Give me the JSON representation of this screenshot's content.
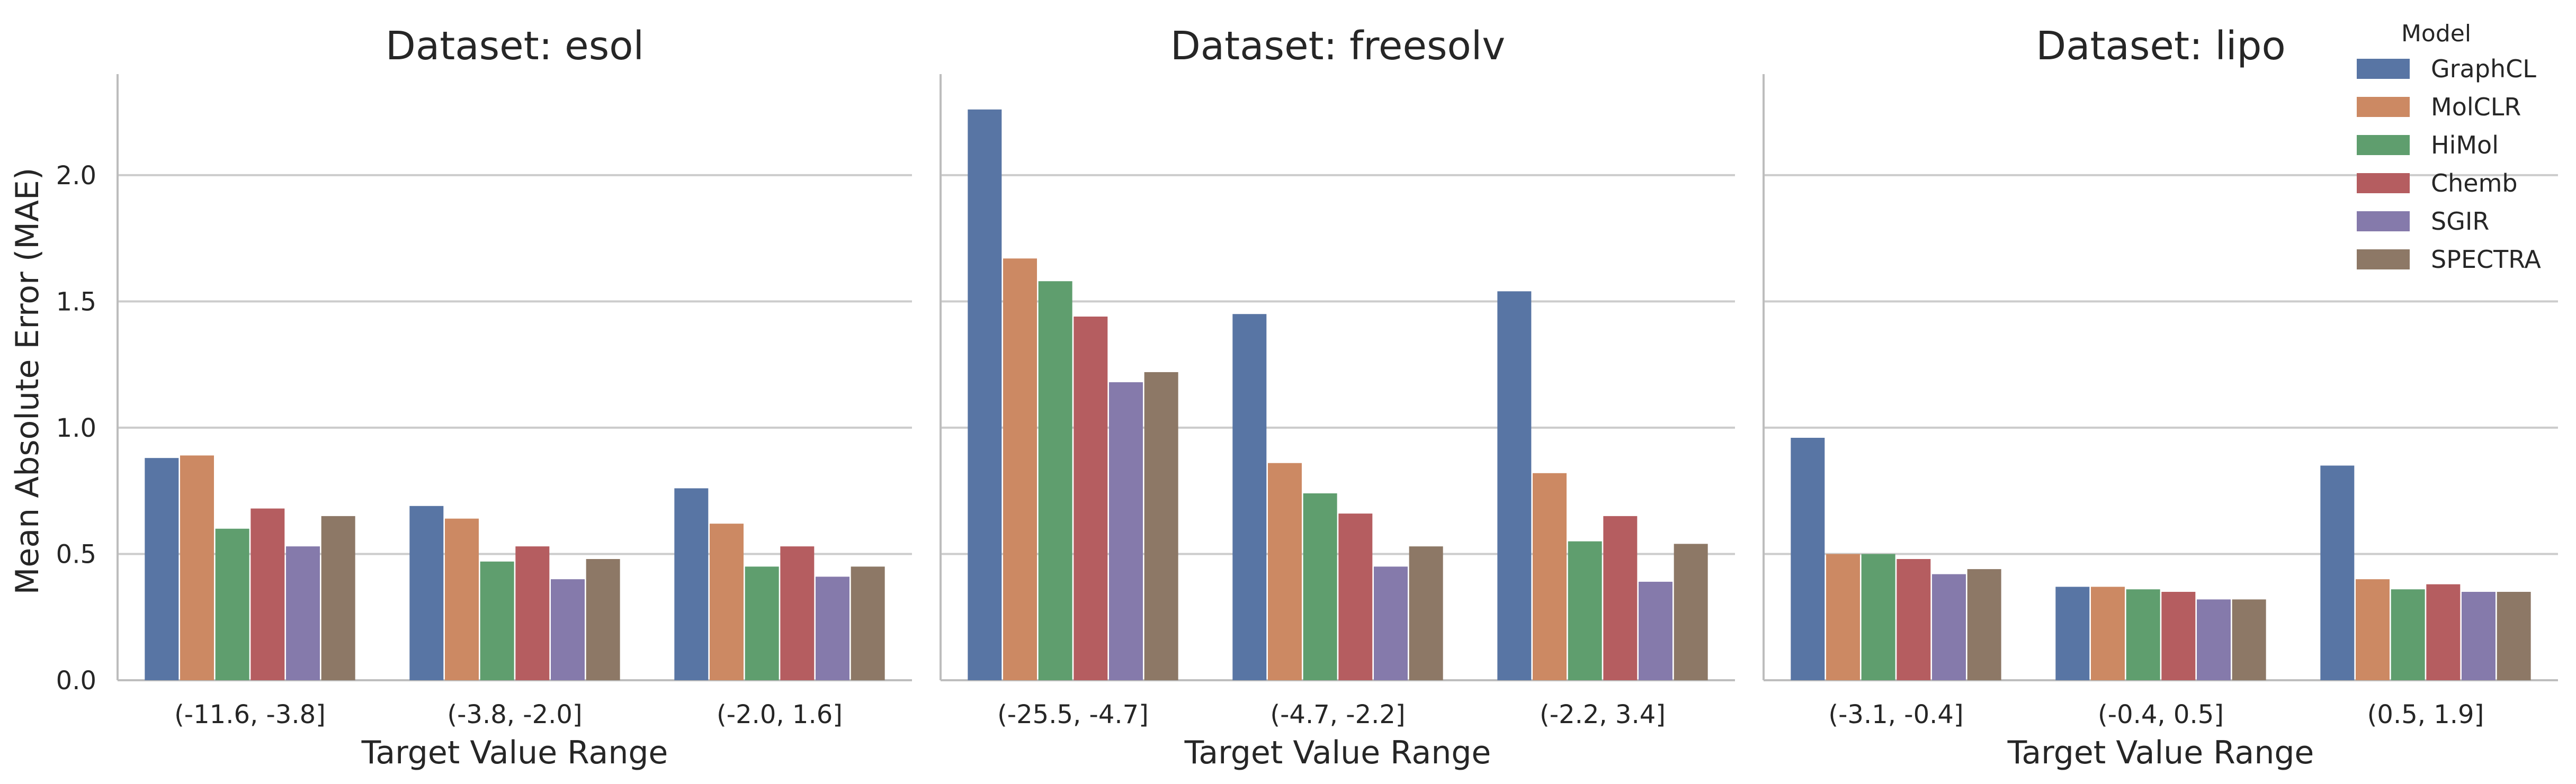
{
  "chart_data": {
    "type": "bar",
    "ylabel": "Mean Absolute Error (MAE)",
    "xlabel": "Target Value Range",
    "ylim": [
      0,
      2.4
    ],
    "yticks": [
      "0.0",
      "0.5",
      "1.0",
      "1.5",
      "2.0"
    ],
    "grid": "horizontal",
    "legend": {
      "title": "Model",
      "placement": "top-right",
      "entries": [
        {
          "name": "GraphCL",
          "color": "#5875a4"
        },
        {
          "name": "MolCLR",
          "color": "#cc8963"
        },
        {
          "name": "HiMol",
          "color": "#5f9e6e"
        },
        {
          "name": "Chemb",
          "color": "#b55d60"
        },
        {
          "name": "SGIR",
          "color": "#857aab"
        },
        {
          "name": "SPECTRA",
          "color": "#8d7866"
        }
      ]
    },
    "panels": [
      {
        "title": "Dataset: esol",
        "categories": [
          "(-11.6, -3.8]",
          "(-3.8, -2.0]",
          "(-2.0, 1.6]"
        ],
        "series": [
          {
            "name": "GraphCL",
            "values": [
              0.88,
              0.69,
              0.76
            ]
          },
          {
            "name": "MolCLR",
            "values": [
              0.89,
              0.64,
              0.62
            ]
          },
          {
            "name": "HiMol",
            "values": [
              0.6,
              0.47,
              0.45
            ]
          },
          {
            "name": "Chemb",
            "values": [
              0.68,
              0.53,
              0.53
            ]
          },
          {
            "name": "SGIR",
            "values": [
              0.53,
              0.4,
              0.41
            ]
          },
          {
            "name": "SPECTRA",
            "values": [
              0.65,
              0.48,
              0.45
            ]
          }
        ]
      },
      {
        "title": "Dataset: freesolv",
        "categories": [
          "(-25.5, -4.7]",
          "(-4.7, -2.2]",
          "(-2.2, 3.4]"
        ],
        "series": [
          {
            "name": "GraphCL",
            "values": [
              2.26,
              1.45,
              1.54
            ]
          },
          {
            "name": "MolCLR",
            "values": [
              1.67,
              0.86,
              0.82
            ]
          },
          {
            "name": "HiMol",
            "values": [
              1.58,
              0.74,
              0.55
            ]
          },
          {
            "name": "Chemb",
            "values": [
              1.44,
              0.66,
              0.65
            ]
          },
          {
            "name": "SGIR",
            "values": [
              1.18,
              0.45,
              0.39
            ]
          },
          {
            "name": "SPECTRA",
            "values": [
              1.22,
              0.53,
              0.54
            ]
          }
        ]
      },
      {
        "title": "Dataset: lipo",
        "categories": [
          "(-3.1, -0.4]",
          "(-0.4, 0.5]",
          "(0.5, 1.9]"
        ],
        "series": [
          {
            "name": "GraphCL",
            "values": [
              0.96,
              0.37,
              0.85
            ]
          },
          {
            "name": "MolCLR",
            "values": [
              0.5,
              0.37,
              0.4
            ]
          },
          {
            "name": "HiMol",
            "values": [
              0.5,
              0.36,
              0.36
            ]
          },
          {
            "name": "Chemb",
            "values": [
              0.48,
              0.35,
              0.38
            ]
          },
          {
            "name": "SGIR",
            "values": [
              0.42,
              0.32,
              0.35
            ]
          },
          {
            "name": "SPECTRA",
            "values": [
              0.44,
              0.32,
              0.35
            ]
          }
        ]
      }
    ]
  }
}
